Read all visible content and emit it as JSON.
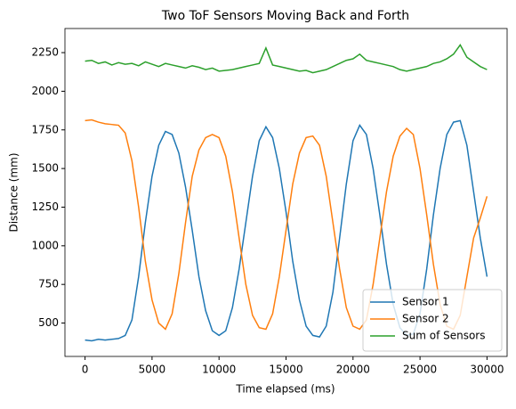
{
  "chart_data": {
    "type": "line",
    "title": "Two ToF Sensors Moving Back and Forth",
    "x_label": "Time elapsed (ms)",
    "y_label": "Distance (mm)",
    "x": [
      0,
      500,
      1000,
      1500,
      2000,
      2500,
      3000,
      3500,
      4000,
      4500,
      5000,
      5500,
      6000,
      6500,
      7000,
      7500,
      8000,
      8500,
      9000,
      9500,
      10000,
      10500,
      11000,
      11500,
      12000,
      12500,
      13000,
      13500,
      14000,
      14500,
      15000,
      15500,
      16000,
      16500,
      17000,
      17500,
      18000,
      18500,
      19000,
      19500,
      20000,
      20500,
      21000,
      21500,
      22000,
      22500,
      23000,
      23500,
      24000,
      24500,
      25000,
      25500,
      26000,
      26500,
      27000,
      27500,
      28000,
      28500,
      29000,
      29500,
      30000
    ],
    "series": [
      {
        "name": "Sensor 1",
        "color": "#1f77b4",
        "values": [
          390,
          385,
          395,
          390,
          395,
          400,
          420,
          520,
          800,
          1150,
          1450,
          1650,
          1740,
          1720,
          1600,
          1380,
          1100,
          800,
          580,
          450,
          420,
          450,
          600,
          850,
          1150,
          1450,
          1680,
          1770,
          1700,
          1500,
          1220,
          900,
          650,
          480,
          420,
          410,
          480,
          700,
          1050,
          1400,
          1680,
          1780,
          1720,
          1500,
          1200,
          880,
          620,
          470,
          420,
          430,
          560,
          850,
          1200,
          1500,
          1720,
          1800,
          1810,
          1650,
          1350,
          1050,
          800
        ]
      },
      {
        "name": "Sensor 2",
        "color": "#ff7f0e",
        "values": [
          1810,
          1815,
          1800,
          1790,
          1785,
          1780,
          1730,
          1550,
          1250,
          900,
          650,
          500,
          460,
          560,
          820,
          1150,
          1450,
          1620,
          1700,
          1720,
          1700,
          1580,
          1350,
          1050,
          750,
          550,
          470,
          460,
          560,
          800,
          1100,
          1400,
          1600,
          1700,
          1710,
          1650,
          1450,
          1150,
          850,
          600,
          480,
          460,
          520,
          750,
          1050,
          1350,
          1580,
          1710,
          1760,
          1720,
          1500,
          1200,
          880,
          620,
          480,
          460,
          550,
          800,
          1050,
          1180,
          1320
        ]
      },
      {
        "name": "Sum of Sensors",
        "color": "#2ca02c",
        "values": [
          2195,
          2200,
          2180,
          2190,
          2170,
          2185,
          2175,
          2180,
          2165,
          2190,
          2175,
          2160,
          2180,
          2170,
          2160,
          2150,
          2165,
          2155,
          2140,
          2150,
          2130,
          2135,
          2140,
          2150,
          2160,
          2170,
          2180,
          2280,
          2170,
          2160,
          2150,
          2140,
          2130,
          2135,
          2120,
          2130,
          2140,
          2160,
          2180,
          2200,
          2210,
          2240,
          2200,
          2190,
          2180,
          2170,
          2160,
          2140,
          2130,
          2140,
          2150,
          2160,
          2180,
          2190,
          2210,
          2240,
          2300,
          2220,
          2190,
          2160,
          2140
        ]
      }
    ],
    "xlim": [
      -1500,
      31500
    ],
    "ylim": [
      284,
      2406
    ],
    "xticks": [
      0,
      5000,
      10000,
      15000,
      20000,
      25000,
      30000
    ],
    "yticks": [
      500,
      750,
      1000,
      1250,
      1500,
      1750,
      2000,
      2250
    ],
    "legend": "lower right"
  }
}
